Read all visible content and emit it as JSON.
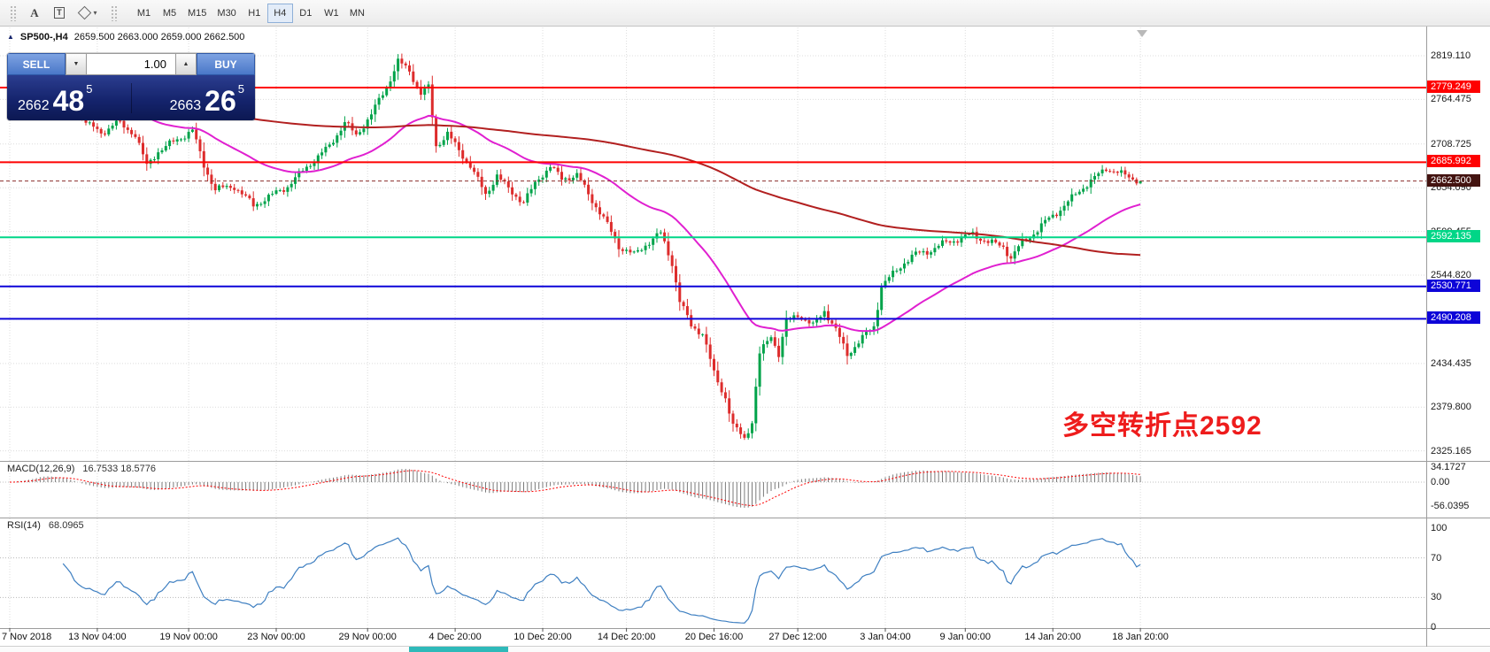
{
  "toolbar": {
    "tools": [
      {
        "name": "toolbar-grip"
      },
      {
        "name": "text-tool",
        "label": "A"
      },
      {
        "name": "text-label-tool",
        "label": "T"
      },
      {
        "name": "shapes-dropdown"
      }
    ],
    "timeframes": [
      "M1",
      "M5",
      "M15",
      "M30",
      "H1",
      "H4",
      "D1",
      "W1",
      "MN"
    ],
    "active_timeframe": "H4"
  },
  "icons": {
    "caret_down": "▼",
    "caret_up": "▲",
    "dropdown_small": "▾",
    "collapse_toggle": "▲"
  },
  "trade_panel": {
    "sell_label": "SELL",
    "buy_label": "BUY",
    "lot_value": "1.00",
    "sell_price": {
      "prefix": "2662",
      "big": "48",
      "sup": "5"
    },
    "buy_price": {
      "prefix": "2663",
      "big": "26",
      "sup": "5"
    }
  },
  "chart": {
    "symbol_period": "SP500-,H4",
    "ohlc_text": "2659.500 2663.000 2659.000 2662.500",
    "annotation": "多空转折点2592",
    "annotation_color": "#ee1c1c"
  },
  "price_axis": {
    "ticks": [
      "2819.110",
      "2764.475",
      "2708.725",
      "2654.090",
      "2599.455",
      "2544.820",
      "2434.435",
      "2379.800",
      "2325.165"
    ],
    "tags": [
      {
        "text": "2779.249",
        "price": 2779.249,
        "color": "#fe0000"
      },
      {
        "text": "2685.992",
        "price": 2685.992,
        "color": "#fe0000"
      },
      {
        "text": "2662.500",
        "price": 2662.5,
        "color": "#431310"
      },
      {
        "text": "2592.135",
        "price": 2592.135,
        "color": "#00d687"
      },
      {
        "text": "2530.771",
        "price": 2530.771,
        "color": "#0d04d8"
      },
      {
        "text": "2490.208",
        "price": 2490.208,
        "color": "#0d04d8"
      }
    ]
  },
  "time_axis": [
    {
      "text": "7 Nov 2018",
      "bar": 0
    },
    {
      "text": "13 Nov 04:00",
      "bar": 23
    },
    {
      "text": "19 Nov 00:00",
      "bar": 47
    },
    {
      "text": "23 Nov 00:00",
      "bar": 70
    },
    {
      "text": "29 Nov 00:00",
      "bar": 94
    },
    {
      "text": "4 Dec 20:00",
      "bar": 117
    },
    {
      "text": "10 Dec 20:00",
      "bar": 140
    },
    {
      "text": "14 Dec 20:00",
      "bar": 162
    },
    {
      "text": "20 Dec 16:00",
      "bar": 185
    },
    {
      "text": "27 Dec 12:00",
      "bar": 207
    },
    {
      "text": "3 Jan 04:00",
      "bar": 230
    },
    {
      "text": "9 Jan 00:00",
      "bar": 251
    },
    {
      "text": "14 Jan 20:00",
      "bar": 274
    },
    {
      "text": "18 Jan 20:00",
      "bar": 297
    }
  ],
  "indicators": {
    "macd": {
      "title": "MACD(12,26,9)",
      "values_text": "16.7533 18.5776",
      "fast": 12,
      "slow": 26,
      "signal": 9,
      "axis": [
        {
          "text": "34.1727",
          "value": 34.1727
        },
        {
          "text": "0.00",
          "value": 0
        },
        {
          "text": "-56.0395",
          "value": -56.0395
        }
      ]
    },
    "rsi": {
      "title": "RSI(14)",
      "value_text": "68.0965",
      "period": 14,
      "levels": [
        70,
        30
      ],
      "axis": [
        {
          "text": "100",
          "value": 100
        },
        {
          "text": "70",
          "value": 70
        },
        {
          "text": "30",
          "value": 30
        },
        {
          "text": "0",
          "value": 0
        }
      ]
    }
  },
  "chart_data": {
    "type": "candlestick",
    "symbol": "SP500-",
    "timeframe": "H4",
    "bars": 298,
    "price_range_visible": [
      2325.165,
      2819.11
    ],
    "y_ticks": [
      2819.11,
      2764.475,
      2708.725,
      2654.09,
      2599.455,
      2544.82,
      2434.435,
      2379.8,
      2325.165
    ],
    "last_ohlc": {
      "open": 2659.5,
      "high": 2663.0,
      "low": 2659.0,
      "close": 2662.5
    },
    "close_waypoints": [
      [
        0,
        2755
      ],
      [
        4,
        2782
      ],
      [
        8,
        2812
      ],
      [
        13,
        2792
      ],
      [
        18,
        2748
      ],
      [
        21,
        2732
      ],
      [
        24,
        2722
      ],
      [
        28,
        2736
      ],
      [
        33,
        2721
      ],
      [
        36,
        2681
      ],
      [
        39,
        2700
      ],
      [
        44,
        2714
      ],
      [
        48,
        2726
      ],
      [
        51,
        2682
      ],
      [
        54,
        2652
      ],
      [
        59,
        2656
      ],
      [
        64,
        2632
      ],
      [
        69,
        2645
      ],
      [
        73,
        2656
      ],
      [
        78,
        2680
      ],
      [
        84,
        2706
      ],
      [
        88,
        2736
      ],
      [
        91,
        2719
      ],
      [
        95,
        2746
      ],
      [
        99,
        2780
      ],
      [
        102,
        2812
      ],
      [
        105,
        2800
      ],
      [
        108,
        2772
      ],
      [
        110,
        2779
      ],
      [
        112,
        2706
      ],
      [
        115,
        2722
      ],
      [
        118,
        2700
      ],
      [
        121,
        2682
      ],
      [
        125,
        2645
      ],
      [
        128,
        2670
      ],
      [
        131,
        2652
      ],
      [
        135,
        2636
      ],
      [
        139,
        2666
      ],
      [
        142,
        2681
      ],
      [
        145,
        2665
      ],
      [
        149,
        2670
      ],
      [
        152,
        2646
      ],
      [
        156,
        2616
      ],
      [
        160,
        2581
      ],
      [
        164,
        2570
      ],
      [
        167,
        2583
      ],
      [
        171,
        2597
      ],
      [
        174,
        2560
      ],
      [
        176,
        2512
      ],
      [
        179,
        2482
      ],
      [
        182,
        2472
      ],
      [
        185,
        2422
      ],
      [
        188,
        2392
      ],
      [
        190,
        2356
      ],
      [
        193,
        2341
      ],
      [
        195,
        2362
      ],
      [
        197,
        2446
      ],
      [
        200,
        2470
      ],
      [
        202,
        2446
      ],
      [
        204,
        2486
      ],
      [
        207,
        2496
      ],
      [
        211,
        2481
      ],
      [
        214,
        2501
      ],
      [
        217,
        2476
      ],
      [
        220,
        2446
      ],
      [
        223,
        2461
      ],
      [
        227,
        2481
      ],
      [
        229,
        2531
      ],
      [
        232,
        2546
      ],
      [
        235,
        2561
      ],
      [
        238,
        2571
      ],
      [
        242,
        2576
      ],
      [
        246,
        2586
      ],
      [
        250,
        2591
      ],
      [
        253,
        2596
      ],
      [
        257,
        2586
      ],
      [
        261,
        2581
      ],
      [
        263,
        2566
      ],
      [
        266,
        2586
      ],
      [
        270,
        2601
      ],
      [
        273,
        2616
      ],
      [
        277,
        2631
      ],
      [
        281,
        2651
      ],
      [
        285,
        2666
      ],
      [
        288,
        2679
      ],
      [
        292,
        2671
      ],
      [
        297,
        2662.5
      ]
    ],
    "horizontal_levels": [
      {
        "price": 2779.249,
        "color": "#fe0000",
        "style": "solid"
      },
      {
        "price": 2685.992,
        "color": "#fe0000",
        "style": "solid"
      },
      {
        "price": 2662.5,
        "color": "#8b2f2b",
        "style": "current-bid"
      },
      {
        "price": 2592.135,
        "color": "#00d687",
        "style": "solid"
      },
      {
        "price": 2530.771,
        "color": "#0d04d8",
        "style": "solid"
      },
      {
        "price": 2490.208,
        "color": "#0d04d8",
        "style": "solid"
      }
    ],
    "moving_averages": [
      {
        "kind": "ema",
        "period": 42,
        "color": "#e020d0"
      },
      {
        "kind": "sma",
        "period": 180,
        "color": "#b22020",
        "pad_value": 2750
      }
    ]
  },
  "colors": {
    "candle_up": "#00a34a",
    "candle_down": "#dd2c2c",
    "grid": "#dcdcdc",
    "panel_border": "#9c9c9c",
    "macd_histogram": "#7a7a7a",
    "macd_signal": "#fe0000",
    "rsi_line": "#3e7fc1",
    "bottom_fragment": "#2fb9b9"
  }
}
